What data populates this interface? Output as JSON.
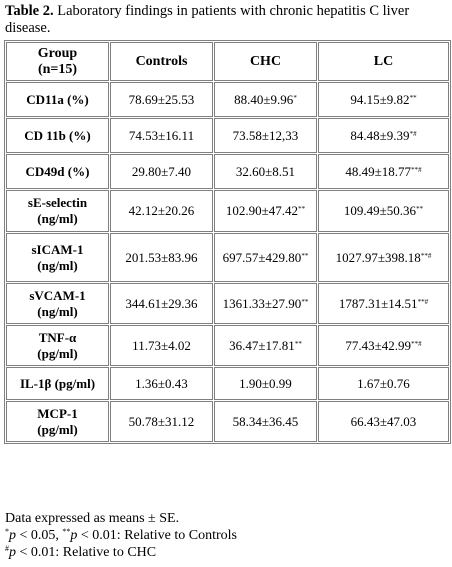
{
  "caption": {
    "label": "Table 2.",
    "text": "Laboratory findings in patients with chronic hepatitis C liver disease."
  },
  "table": {
    "headers": {
      "group_line1": "Group",
      "group_line2": "(n=15)",
      "controls": "Controls",
      "chc": "CHC",
      "lc": "LC"
    },
    "rows": [
      {
        "label": "CD11a (%)",
        "label2": "",
        "controls": "78.69±25.53",
        "chc": "88.40±9.96",
        "chc_mark": "*",
        "lc": "94.15±9.82",
        "lc_mark": "**"
      },
      {
        "label": "CD 11b (%)",
        "label2": "",
        "controls": "74.53±16.11",
        "chc": "73.58±12,33",
        "chc_mark": "",
        "lc": "84.48±9.39",
        "lc_mark": "*#"
      },
      {
        "label": "CD49d (%)",
        "label2": "",
        "controls": "29.80±7.40",
        "chc": "32.60±8.51",
        "chc_mark": "",
        "lc": "48.49±18.77",
        "lc_mark": "**#"
      },
      {
        "label": "sE-selectin",
        "label2": "(ng/ml)",
        "controls": "42.12±20.26",
        "chc": "102.90±47.42",
        "chc_mark": "**",
        "lc": "109.49±50.36",
        "lc_mark": "**"
      },
      {
        "label": "sICAM-1",
        "label2": "(ng/ml)",
        "controls": "201.53±83.96",
        "chc": "697.57±429.80",
        "chc_mark": "**",
        "lc": "1027.97±398.18",
        "lc_mark": "**#"
      },
      {
        "label": "sVCAM-1",
        "label2": "(ng/ml)",
        "controls": "344.61±29.36",
        "chc": "1361.33±27.90",
        "chc_mark": "**",
        "lc": "1787.31±14.51",
        "lc_mark": "**#"
      },
      {
        "label": "TNF-α",
        "label2": "(pg/ml)",
        "controls": "11.73±4.02",
        "chc": "36.47±17.81",
        "chc_mark": "**",
        "lc": "77.43±42.99",
        "lc_mark": "**#"
      },
      {
        "label": "IL-1β (pg/ml)",
        "label2": "",
        "controls": "1.36±0.43",
        "chc": "1.90±0.99",
        "chc_mark": "",
        "lc": "1.67±0.76",
        "lc_mark": ""
      },
      {
        "label": "MCP-1",
        "label2": "(pg/ml)",
        "controls": "50.78±31.12",
        "chc": "58.34±36.45",
        "chc_mark": "",
        "lc": "66.43±47.03",
        "lc_mark": ""
      }
    ]
  },
  "notes": {
    "line1": "Data expressed as means ± SE.",
    "line2": {
      "m1": "*",
      "p1": "p",
      "t1": " < 0.05, ",
      "m2": "**",
      "p2": "p",
      "t2": " < 0.01: Relative to Controls"
    },
    "line3": {
      "m1": "#",
      "p1": "p",
      "t1": " < 0.01: Relative to CHC"
    }
  }
}
